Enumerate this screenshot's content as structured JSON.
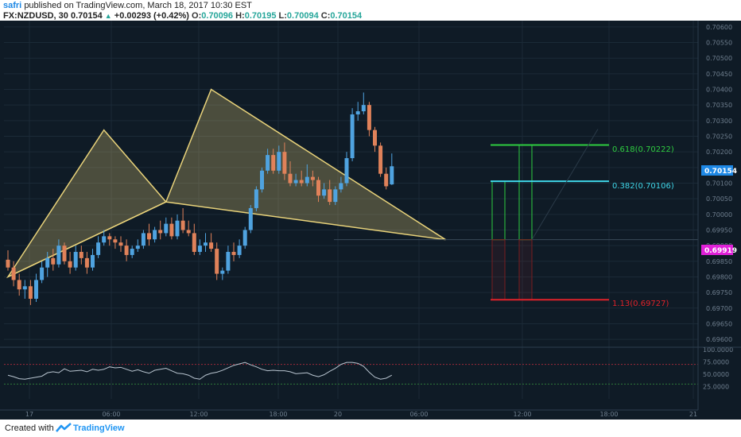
{
  "header": {
    "author": "safri",
    "published": "published on TradingView.com, March 18, 2017 10:30 EST",
    "symbol": "FX:NZDUSD, 30",
    "last": "0.70154",
    "change": "+0.00293 (+0.42%)",
    "open_label": "O:",
    "open": "0.70096",
    "high_label": "H:",
    "high": "0.70195",
    "low_label": "L:",
    "low": "0.70094",
    "close_label": "C:",
    "close": "0.70154"
  },
  "footer": {
    "created": "Created with",
    "brand": "TradingView"
  },
  "colors": {
    "background": "#0f1b26",
    "up": "#4fa3e0",
    "down": "#e0825a",
    "pattern": "#e8d27a",
    "fib_green": "#2ecc40",
    "fib_cyan": "#3fd6e8",
    "fib_red": "#e0222a",
    "badge_price": "#1e88e5",
    "badge_target": "#e020d8"
  },
  "price_axis": {
    "ticks": [
      "0.70600",
      "0.70550",
      "0.70500",
      "0.70450",
      "0.70400",
      "0.70350",
      "0.70300",
      "0.70250",
      "0.70200",
      "0.70150",
      "0.70100",
      "0.70050",
      "0.70000",
      "0.69950",
      "0.69900",
      "0.69850",
      "0.69800",
      "0.69750",
      "0.69700",
      "0.69650",
      "0.69600"
    ],
    "current_badge": "0.70154",
    "target_badge": "0.69919"
  },
  "time_axis": {
    "ticks": [
      "17",
      "06:00",
      "12:00",
      "18:00",
      "20",
      "06:00",
      "12:00",
      "18:00",
      "21"
    ]
  },
  "rsi_axis": {
    "ticks": [
      "100.0000",
      "75.0000",
      "50.0000",
      "25.0000"
    ]
  },
  "fib_labels": {
    "f618": "0.618(0.70222)",
    "f382": "0.382(0.70106)",
    "f113": "1.13(0.69727)"
  },
  "chart_data": {
    "type": "candlestick",
    "symbol": "FX:NZDUSD",
    "interval": "30",
    "ylim": [
      0.6958,
      0.7062
    ],
    "candles": [
      [
        0.69855,
        0.69885,
        0.6982,
        0.6983
      ],
      [
        0.6983,
        0.6985,
        0.6977,
        0.6979
      ],
      [
        0.6979,
        0.6981,
        0.6974,
        0.6976
      ],
      [
        0.6976,
        0.6979,
        0.6973,
        0.6977
      ],
      [
        0.6977,
        0.6979,
        0.6971,
        0.6973
      ],
      [
        0.6973,
        0.6981,
        0.6972,
        0.6979
      ],
      [
        0.6979,
        0.6985,
        0.6978,
        0.6983
      ],
      [
        0.6983,
        0.6988,
        0.698,
        0.6986
      ],
      [
        0.6986,
        0.6989,
        0.6982,
        0.6984
      ],
      [
        0.6984,
        0.6992,
        0.6983,
        0.699
      ],
      [
        0.699,
        0.6991,
        0.6984,
        0.6985
      ],
      [
        0.6985,
        0.6988,
        0.6981,
        0.6983
      ],
      [
        0.6983,
        0.699,
        0.6982,
        0.6988
      ],
      [
        0.6988,
        0.699,
        0.6984,
        0.6986
      ],
      [
        0.6986,
        0.6988,
        0.6981,
        0.6983
      ],
      [
        0.6983,
        0.6989,
        0.6982,
        0.6987
      ],
      [
        0.6987,
        0.6993,
        0.6986,
        0.6991
      ],
      [
        0.6991,
        0.6995,
        0.699,
        0.6993
      ],
      [
        0.6993,
        0.6994,
        0.699,
        0.6992
      ],
      [
        0.6992,
        0.6993,
        0.6989,
        0.6991
      ],
      [
        0.6991,
        0.6993,
        0.6988,
        0.699
      ],
      [
        0.699,
        0.6992,
        0.6985,
        0.6987
      ],
      [
        0.6987,
        0.699,
        0.6986,
        0.6989
      ],
      [
        0.6989,
        0.6992,
        0.6988,
        0.699
      ],
      [
        0.699,
        0.6995,
        0.6989,
        0.6994
      ],
      [
        0.6994,
        0.6997,
        0.699,
        0.6992
      ],
      [
        0.6992,
        0.6996,
        0.6991,
        0.6995
      ],
      [
        0.6995,
        0.6998,
        0.6992,
        0.6994
      ],
      [
        0.6994,
        0.6999,
        0.6993,
        0.6997
      ],
      [
        0.6997,
        0.6999,
        0.6992,
        0.6993
      ],
      [
        0.6993,
        0.7,
        0.6992,
        0.6998
      ],
      [
        0.6998,
        0.7002,
        0.6994,
        0.6995
      ],
      [
        0.6995,
        0.6998,
        0.6993,
        0.6994
      ],
      [
        0.6994,
        0.6997,
        0.6987,
        0.6988
      ],
      [
        0.6988,
        0.6992,
        0.6987,
        0.699
      ],
      [
        0.699,
        0.6994,
        0.6988,
        0.6991
      ],
      [
        0.6991,
        0.6994,
        0.6988,
        0.6989
      ],
      [
        0.6989,
        0.6991,
        0.6979,
        0.6981
      ],
      [
        0.6981,
        0.6983,
        0.6979,
        0.6982
      ],
      [
        0.6982,
        0.699,
        0.6981,
        0.6988
      ],
      [
        0.6988,
        0.6991,
        0.6985,
        0.6987
      ],
      [
        0.6987,
        0.6992,
        0.6986,
        0.699
      ],
      [
        0.699,
        0.6996,
        0.6989,
        0.6995
      ],
      [
        0.6995,
        0.7003,
        0.6994,
        0.7002
      ],
      [
        0.7002,
        0.7009,
        0.7001,
        0.7008
      ],
      [
        0.7008,
        0.7015,
        0.7007,
        0.7014
      ],
      [
        0.7014,
        0.7021,
        0.7013,
        0.7019
      ],
      [
        0.7019,
        0.7021,
        0.7013,
        0.7014
      ],
      [
        0.7014,
        0.7022,
        0.7013,
        0.702
      ],
      [
        0.702,
        0.7023,
        0.7011,
        0.7013
      ],
      [
        0.7013,
        0.7017,
        0.7009,
        0.701
      ],
      [
        0.701,
        0.7013,
        0.7009,
        0.7011
      ],
      [
        0.7011,
        0.7014,
        0.7009,
        0.701
      ],
      [
        0.701,
        0.7016,
        0.7009,
        0.7012
      ],
      [
        0.7012,
        0.7014,
        0.7009,
        0.7011
      ],
      [
        0.7011,
        0.7012,
        0.7004,
        0.7006
      ],
      [
        0.7006,
        0.701,
        0.7005,
        0.7008
      ],
      [
        0.7008,
        0.7011,
        0.7003,
        0.7004
      ],
      [
        0.7004,
        0.7009,
        0.7003,
        0.7008
      ],
      [
        0.7008,
        0.7012,
        0.7007,
        0.701
      ],
      [
        0.701,
        0.702,
        0.7009,
        0.7018
      ],
      [
        0.7018,
        0.7034,
        0.7017,
        0.7032
      ],
      [
        0.7032,
        0.7036,
        0.703,
        0.7033
      ],
      [
        0.7033,
        0.7039,
        0.7032,
        0.7035
      ],
      [
        0.7035,
        0.7036,
        0.7025,
        0.7027
      ],
      [
        0.7027,
        0.7028,
        0.702,
        0.7022
      ],
      [
        0.7022,
        0.7023,
        0.7012,
        0.7013
      ],
      [
        0.7013,
        0.7015,
        0.7008,
        0.7009
      ],
      [
        0.70096,
        0.70195,
        0.70094,
        0.70154
      ]
    ],
    "harmonic_pattern": {
      "X": [
        0,
        0.698
      ],
      "A": [
        17,
        0.7027
      ],
      "B": [
        28,
        0.7004
      ],
      "C": [
        36,
        0.704
      ],
      "D": [
        55,
        0.69919
      ]
    },
    "fib_levels": [
      {
        "label": "0.618",
        "price": 0.70222
      },
      {
        "label": "0.382",
        "price": 0.70106
      },
      {
        "label": "1.13",
        "price": 0.69727
      }
    ],
    "rsi": {
      "ylim": [
        0,
        100
      ],
      "levels": [
        70,
        30
      ],
      "values": [
        48,
        45,
        41,
        40,
        42,
        44,
        46,
        53,
        55,
        53,
        61,
        56,
        57,
        58,
        55,
        60,
        58,
        60,
        65,
        63,
        64,
        60,
        56,
        59,
        55,
        52,
        58,
        60,
        62,
        57,
        52,
        51,
        48,
        42,
        40,
        48,
        52,
        54,
        58,
        63,
        68,
        71,
        74,
        69,
        65,
        60,
        57,
        58,
        57,
        57,
        55,
        51,
        52,
        53,
        48,
        45,
        49,
        56,
        62,
        70,
        74,
        74,
        72,
        66,
        54,
        44,
        40,
        42,
        48
      ]
    }
  }
}
